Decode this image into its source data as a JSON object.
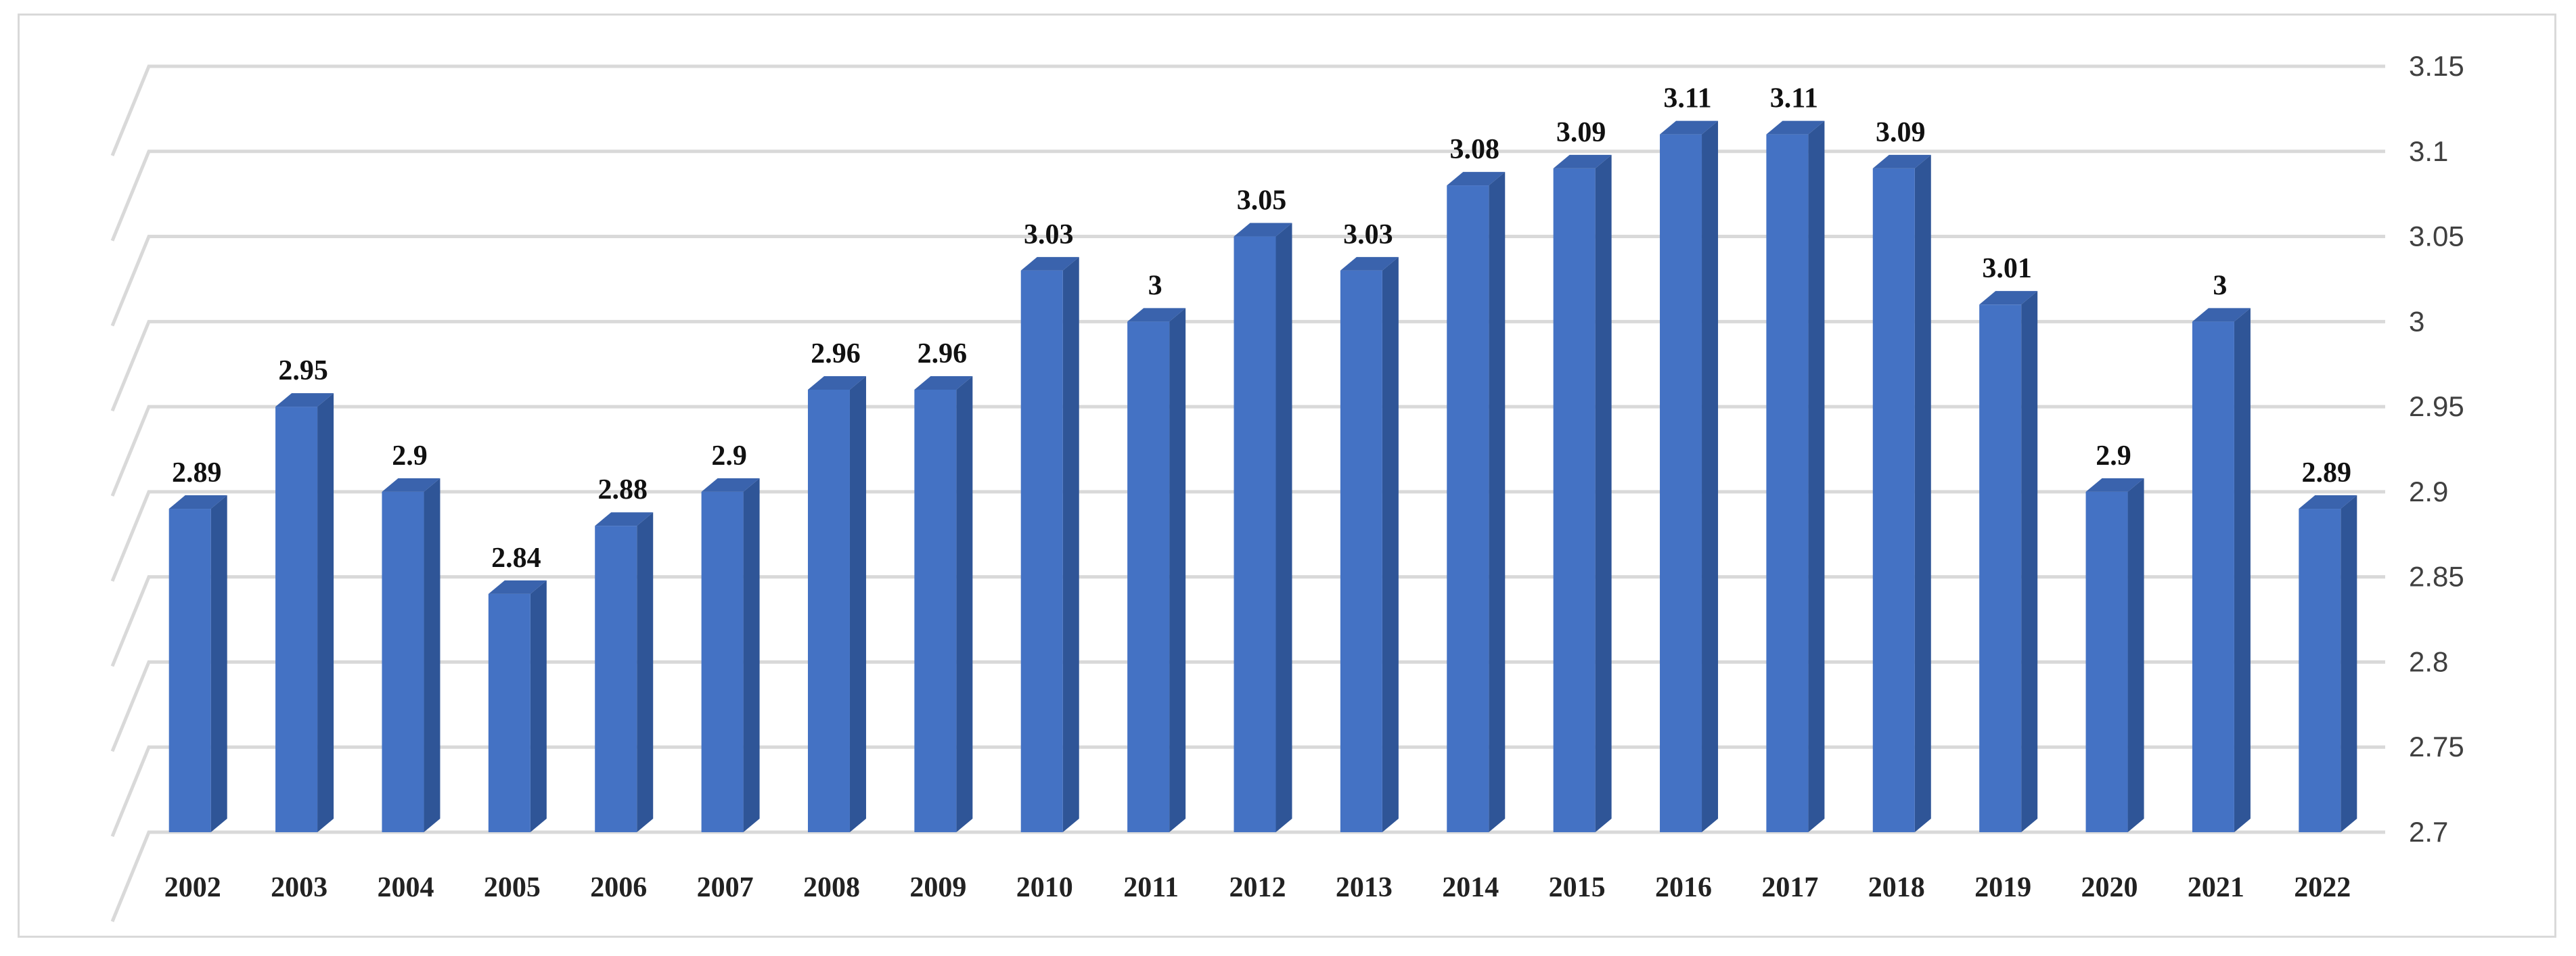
{
  "chart_data": {
    "type": "bar",
    "categories": [
      "2002",
      "2003",
      "2004",
      "2005",
      "2006",
      "2007",
      "2008",
      "2009",
      "2010",
      "2011",
      "2012",
      "2013",
      "2014",
      "2015",
      "2016",
      "2017",
      "2018",
      "2019",
      "2020",
      "2021",
      "2022"
    ],
    "values": [
      2.89,
      2.95,
      2.9,
      2.84,
      2.88,
      2.9,
      2.96,
      2.96,
      3.03,
      3,
      3.05,
      3.03,
      3.08,
      3.09,
      3.11,
      3.11,
      3.09,
      3.01,
      2.9,
      3,
      2.89
    ],
    "data_labels": [
      "2.89",
      "2.95",
      "2.9",
      "2.84",
      "2.88",
      "2.9",
      "2.96",
      "2.96",
      "3.03",
      "3",
      "3.05",
      "3.03",
      "3.08",
      "3.09",
      "3.11",
      "3.11",
      "3.09",
      "3.01",
      "2.9",
      "3",
      "2.89"
    ],
    "y_ticks": [
      "2.7",
      "2.75",
      "2.8",
      "2.85",
      "2.9",
      "2.95",
      "3",
      "3.05",
      "3.1",
      "3.15"
    ],
    "ylim": [
      2.7,
      3.15
    ],
    "y_axis_position": "right",
    "grid": true,
    "legend": "none",
    "title": "",
    "xlabel": "",
    "ylabel": "",
    "colors": {
      "bar_front": "#4472c4",
      "bar_side": "#2f5597",
      "bar_top": "#3a63ad",
      "grid": "#d9d9d9"
    }
  }
}
